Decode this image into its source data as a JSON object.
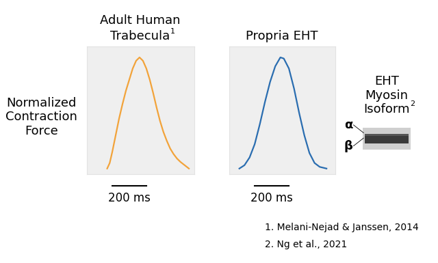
{
  "chart_data": [
    {
      "type": "line",
      "title": "Adult Human\nTrabecula",
      "reference": "1",
      "x": [
        120,
        135,
        150,
        170,
        190,
        210,
        230,
        250,
        270,
        290,
        310,
        330,
        350,
        370,
        390,
        410,
        430,
        450,
        470,
        490,
        510,
        530,
        550,
        575,
        600
      ],
      "series": [
        {
          "color": "#f2a33a",
          "values": [
            0.0,
            0.05,
            0.15,
            0.3,
            0.45,
            0.58,
            0.7,
            0.8,
            0.9,
            0.97,
            1.0,
            0.97,
            0.9,
            0.8,
            0.68,
            0.55,
            0.43,
            0.33,
            0.25,
            0.18,
            0.13,
            0.09,
            0.06,
            0.03,
            0.0
          ]
        }
      ],
      "xlim": [
        0,
        630
      ],
      "ylim": [
        -0.05,
        1.1
      ],
      "tick_labels": false,
      "scale_bar": {
        "value": 200,
        "label": "200 ms"
      }
    },
    {
      "type": "line",
      "title": "Propria EHT",
      "x": [
        60,
        90,
        120,
        150,
        180,
        210,
        240,
        270,
        300,
        320,
        350,
        380,
        410,
        440,
        470,
        500,
        530,
        570
      ],
      "series": [
        {
          "color": "#2a6db0",
          "values": [
            0.0,
            0.03,
            0.1,
            0.22,
            0.4,
            0.6,
            0.78,
            0.92,
            1.0,
            0.99,
            0.9,
            0.72,
            0.5,
            0.3,
            0.14,
            0.05,
            0.015,
            0.0
          ]
        }
      ],
      "xlim": [
        0,
        620
      ],
      "ylim": [
        -0.05,
        1.1
      ],
      "tick_labels": false,
      "scale_bar": {
        "value": 200,
        "label": "200 ms"
      }
    }
  ],
  "y_label": "Normalized\nContraction\nForce",
  "gel": {
    "title": "EHT\nMyosin\nIsoform",
    "reference": "2",
    "bands": [
      "α",
      "β"
    ]
  },
  "references": [
    "1. Melani-Nejad & Janssen, 2014",
    "2. Ng et al., 2021"
  ]
}
